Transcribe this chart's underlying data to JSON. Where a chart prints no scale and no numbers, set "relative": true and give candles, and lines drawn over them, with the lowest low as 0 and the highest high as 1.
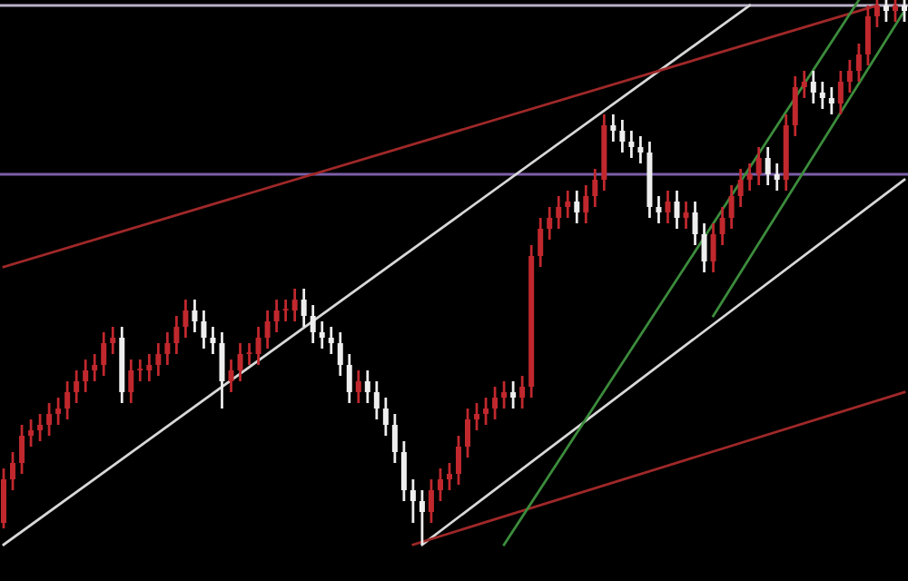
{
  "chart_data": {
    "type": "candlestick",
    "relative": true,
    "categories": [
      null,
      null,
      null,
      null,
      null,
      null,
      null,
      null,
      null,
      null,
      null,
      null,
      null,
      null,
      null,
      null,
      null,
      null,
      null,
      null,
      null,
      null,
      null,
      null,
      null,
      null,
      null,
      null,
      null,
      null,
      null,
      null,
      null,
      null,
      null,
      null,
      null,
      null,
      null,
      null,
      null,
      null,
      null,
      null,
      null,
      null,
      null,
      null,
      null,
      null,
      null,
      null,
      null,
      null,
      null,
      null,
      null,
      null,
      null,
      null,
      null,
      null,
      null,
      null,
      null,
      null,
      null,
      null,
      null,
      null,
      null,
      null,
      null,
      null,
      null,
      null,
      null,
      null,
      null,
      null,
      null,
      null,
      null,
      null,
      null,
      null,
      null,
      null,
      null,
      null,
      null,
      null,
      null,
      null,
      null,
      null,
      null,
      null,
      null,
      null
    ],
    "ohlc": [
      [
        0.04,
        0.14,
        0.03,
        0.12
      ],
      [
        0.12,
        0.17,
        0.1,
        0.15
      ],
      [
        0.15,
        0.22,
        0.13,
        0.2
      ],
      [
        0.2,
        0.23,
        0.18,
        0.21
      ],
      [
        0.21,
        0.24,
        0.19,
        0.22
      ],
      [
        0.22,
        0.26,
        0.2,
        0.24
      ],
      [
        0.24,
        0.27,
        0.22,
        0.25
      ],
      [
        0.25,
        0.3,
        0.23,
        0.28
      ],
      [
        0.28,
        0.32,
        0.26,
        0.3
      ],
      [
        0.3,
        0.34,
        0.28,
        0.32
      ],
      [
        0.32,
        0.35,
        0.3,
        0.33
      ],
      [
        0.33,
        0.39,
        0.31,
        0.37
      ],
      [
        0.37,
        0.4,
        0.35,
        0.38
      ],
      [
        0.38,
        0.4,
        0.26,
        0.28
      ],
      [
        0.28,
        0.34,
        0.26,
        0.32
      ],
      [
        0.32,
        0.34,
        0.3,
        0.32
      ],
      [
        0.32,
        0.35,
        0.3,
        0.33
      ],
      [
        0.33,
        0.37,
        0.31,
        0.35
      ],
      [
        0.35,
        0.39,
        0.33,
        0.37
      ],
      [
        0.37,
        0.42,
        0.35,
        0.4
      ],
      [
        0.4,
        0.45,
        0.38,
        0.43
      ],
      [
        0.43,
        0.45,
        0.39,
        0.41
      ],
      [
        0.41,
        0.43,
        0.36,
        0.38
      ],
      [
        0.38,
        0.4,
        0.35,
        0.37
      ],
      [
        0.37,
        0.39,
        0.25,
        0.3
      ],
      [
        0.3,
        0.34,
        0.28,
        0.32
      ],
      [
        0.32,
        0.37,
        0.3,
        0.35
      ],
      [
        0.35,
        0.37,
        0.33,
        0.35
      ],
      [
        0.35,
        0.4,
        0.33,
        0.38
      ],
      [
        0.38,
        0.43,
        0.36,
        0.41
      ],
      [
        0.41,
        0.45,
        0.39,
        0.43
      ],
      [
        0.43,
        0.45,
        0.41,
        0.43
      ],
      [
        0.43,
        0.47,
        0.41,
        0.45
      ],
      [
        0.45,
        0.47,
        0.4,
        0.42
      ],
      [
        0.42,
        0.44,
        0.37,
        0.39
      ],
      [
        0.39,
        0.41,
        0.36,
        0.38
      ],
      [
        0.38,
        0.4,
        0.35,
        0.37
      ],
      [
        0.37,
        0.39,
        0.31,
        0.33
      ],
      [
        0.33,
        0.35,
        0.26,
        0.28
      ],
      [
        0.28,
        0.32,
        0.26,
        0.3
      ],
      [
        0.3,
        0.32,
        0.26,
        0.28
      ],
      [
        0.28,
        0.3,
        0.23,
        0.25
      ],
      [
        0.25,
        0.27,
        0.2,
        0.22
      ],
      [
        0.22,
        0.24,
        0.15,
        0.17
      ],
      [
        0.17,
        0.19,
        0.08,
        0.1
      ],
      [
        0.1,
        0.12,
        0.04,
        0.08
      ],
      [
        0.08,
        0.1,
        0.0,
        0.06
      ],
      [
        0.06,
        0.12,
        0.04,
        0.1
      ],
      [
        0.1,
        0.14,
        0.08,
        0.12
      ],
      [
        0.12,
        0.15,
        0.1,
        0.13
      ],
      [
        0.13,
        0.2,
        0.11,
        0.18
      ],
      [
        0.18,
        0.25,
        0.16,
        0.23
      ],
      [
        0.23,
        0.26,
        0.21,
        0.24
      ],
      [
        0.24,
        0.27,
        0.22,
        0.25
      ],
      [
        0.25,
        0.29,
        0.23,
        0.27
      ],
      [
        0.27,
        0.3,
        0.25,
        0.28
      ],
      [
        0.28,
        0.3,
        0.25,
        0.27
      ],
      [
        0.27,
        0.31,
        0.25,
        0.29
      ],
      [
        0.29,
        0.55,
        0.27,
        0.53
      ],
      [
        0.53,
        0.6,
        0.51,
        0.58
      ],
      [
        0.58,
        0.62,
        0.56,
        0.6
      ],
      [
        0.6,
        0.64,
        0.58,
        0.62
      ],
      [
        0.62,
        0.65,
        0.6,
        0.63
      ],
      [
        0.63,
        0.65,
        0.59,
        0.61
      ],
      [
        0.61,
        0.66,
        0.59,
        0.64
      ],
      [
        0.64,
        0.69,
        0.62,
        0.67
      ],
      [
        0.67,
        0.79,
        0.65,
        0.77
      ],
      [
        0.77,
        0.79,
        0.74,
        0.76
      ],
      [
        0.76,
        0.78,
        0.72,
        0.74
      ],
      [
        0.74,
        0.76,
        0.71,
        0.73
      ],
      [
        0.73,
        0.75,
        0.7,
        0.72
      ],
      [
        0.72,
        0.74,
        0.6,
        0.62
      ],
      [
        0.62,
        0.64,
        0.59,
        0.61
      ],
      [
        0.61,
        0.65,
        0.59,
        0.63
      ],
      [
        0.63,
        0.65,
        0.58,
        0.6
      ],
      [
        0.6,
        0.63,
        0.58,
        0.61
      ],
      [
        0.61,
        0.63,
        0.55,
        0.57
      ],
      [
        0.57,
        0.59,
        0.5,
        0.52
      ],
      [
        0.52,
        0.59,
        0.5,
        0.57
      ],
      [
        0.57,
        0.62,
        0.55,
        0.6
      ],
      [
        0.6,
        0.66,
        0.58,
        0.64
      ],
      [
        0.64,
        0.69,
        0.62,
        0.67
      ],
      [
        0.67,
        0.7,
        0.65,
        0.68
      ],
      [
        0.68,
        0.73,
        0.66,
        0.71
      ],
      [
        0.71,
        0.73,
        0.66,
        0.68
      ],
      [
        0.68,
        0.7,
        0.65,
        0.67
      ],
      [
        0.67,
        0.79,
        0.65,
        0.77
      ],
      [
        0.77,
        0.86,
        0.75,
        0.84
      ],
      [
        0.84,
        0.87,
        0.82,
        0.85
      ],
      [
        0.85,
        0.87,
        0.81,
        0.83
      ],
      [
        0.83,
        0.85,
        0.8,
        0.82
      ],
      [
        0.82,
        0.84,
        0.79,
        0.81
      ],
      [
        0.81,
        0.87,
        0.79,
        0.85
      ],
      [
        0.85,
        0.89,
        0.83,
        0.87
      ],
      [
        0.87,
        0.92,
        0.85,
        0.9
      ],
      [
        0.9,
        0.99,
        0.88,
        0.97
      ],
      [
        0.97,
        1.0,
        0.95,
        0.99
      ],
      [
        0.99,
        1.0,
        0.96,
        0.98
      ],
      [
        0.98,
        1.0,
        0.96,
        0.99
      ],
      [
        0.99,
        1.0,
        0.96,
        0.98
      ]
    ],
    "colors": [
      "#c0282d",
      "#c0282d",
      "#c0282d",
      "#c0282d",
      "#c0282d",
      "#c0282d",
      "#c0282d",
      "#c0282d",
      "#c0282d",
      "#c0282d",
      "#c0282d",
      "#c0282d",
      "#c0282d",
      "#eeeeee",
      "#c0282d",
      "#c0282d",
      "#c0282d",
      "#c0282d",
      "#c0282d",
      "#c0282d",
      "#c0282d",
      "#eeeeee",
      "#eeeeee",
      "#eeeeee",
      "#eeeeee",
      "#c0282d",
      "#c0282d",
      "#c0282d",
      "#c0282d",
      "#c0282d",
      "#c0282d",
      "#c0282d",
      "#c0282d",
      "#eeeeee",
      "#eeeeee",
      "#eeeeee",
      "#eeeeee",
      "#eeeeee",
      "#eeeeee",
      "#c0282d",
      "#eeeeee",
      "#eeeeee",
      "#eeeeee",
      "#eeeeee",
      "#eeeeee",
      "#eeeeee",
      "#eeeeee",
      "#c0282d",
      "#c0282d",
      "#c0282d",
      "#c0282d",
      "#c0282d",
      "#c0282d",
      "#c0282d",
      "#c0282d",
      "#c0282d",
      "#eeeeee",
      "#c0282d",
      "#c0282d",
      "#c0282d",
      "#c0282d",
      "#c0282d",
      "#c0282d",
      "#eeeeee",
      "#c0282d",
      "#c0282d",
      "#c0282d",
      "#eeeeee",
      "#eeeeee",
      "#eeeeee",
      "#eeeeee",
      "#eeeeee",
      "#eeeeee",
      "#c0282d",
      "#eeeeee",
      "#c0282d",
      "#eeeeee",
      "#eeeeee",
      "#c0282d",
      "#c0282d",
      "#c0282d",
      "#c0282d",
      "#c0282d",
      "#c0282d",
      "#eeeeee",
      "#eeeeee",
      "#c0282d",
      "#c0282d",
      "#c0282d",
      "#eeeeee",
      "#eeeeee",
      "#eeeeee",
      "#c0282d",
      "#c0282d",
      "#c0282d",
      "#c0282d",
      "#c0282d",
      "#eeeeee",
      "#c0282d",
      "#eeeeee"
    ],
    "series": [
      {
        "type": "line",
        "color": "#d8d8d8",
        "values": [
          0.0,
          null,
          null,
          null,
          null,
          null,
          null,
          null,
          null,
          null,
          null,
          null,
          null,
          null,
          null,
          null,
          null,
          null,
          null,
          null,
          null,
          null,
          null,
          null,
          null,
          null,
          null,
          null,
          null,
          null,
          null,
          null,
          null,
          null,
          null,
          null,
          null,
          null,
          null,
          null,
          null,
          null,
          null,
          null,
          null,
          null,
          null,
          null,
          null,
          null,
          null,
          null,
          null,
          null,
          null,
          null,
          null,
          null,
          null,
          null,
          null,
          null,
          null,
          null,
          null,
          null,
          null,
          null,
          null,
          null,
          null,
          null,
          null,
          null,
          null,
          null,
          null,
          null,
          null,
          null,
          null,
          null,
          0.99,
          null,
          null,
          null,
          null,
          null,
          null,
          null,
          null,
          null,
          null,
          null,
          null,
          null,
          null,
          null,
          null,
          null
        ]
      },
      {
        "type": "line",
        "color": "#a02828",
        "values": [
          0.51,
          null,
          null,
          null,
          null,
          null,
          null,
          null,
          null,
          null,
          null,
          null,
          null,
          null,
          null,
          null,
          null,
          null,
          null,
          null,
          null,
          null,
          null,
          null,
          null,
          null,
          null,
          null,
          null,
          null,
          null,
          null,
          null,
          null,
          null,
          null,
          null,
          null,
          null,
          null,
          null,
          null,
          null,
          null,
          null,
          null,
          null,
          null,
          null,
          null,
          null,
          null,
          null,
          null,
          null,
          null,
          null,
          null,
          null,
          null,
          null,
          null,
          null,
          null,
          null,
          null,
          null,
          null,
          null,
          null,
          null,
          null,
          null,
          null,
          null,
          null,
          null,
          null,
          null,
          null,
          null,
          null,
          null,
          null,
          null,
          null,
          null,
          null,
          null,
          null,
          null,
          null,
          null,
          null,
          null,
          null,
          0.99,
          null,
          null,
          null
        ]
      },
      {
        "type": "line",
        "color": "#d8d8d8",
        "values": [
          null,
          null,
          null,
          null,
          null,
          null,
          null,
          null,
          null,
          null,
          null,
          null,
          null,
          null,
          null,
          null,
          null,
          null,
          null,
          null,
          null,
          null,
          null,
          null,
          null,
          null,
          null,
          null,
          null,
          null,
          null,
          null,
          null,
          null,
          null,
          null,
          null,
          null,
          null,
          null,
          null,
          null,
          null,
          null,
          null,
          null,
          0.0,
          null,
          null,
          null,
          null,
          null,
          null,
          null,
          null,
          null,
          null,
          null,
          null,
          null,
          null,
          null,
          null,
          null,
          null,
          null,
          null,
          null,
          null,
          null,
          null,
          null,
          null,
          null,
          null,
          null,
          null,
          null,
          null,
          null,
          null,
          null,
          null,
          null,
          null,
          null,
          null,
          null,
          null,
          null,
          null,
          null,
          null,
          null,
          null,
          null,
          null,
          null,
          null,
          0.67
        ]
      },
      {
        "type": "line",
        "color": "#a02828",
        "values": [
          null,
          null,
          null,
          null,
          null,
          null,
          null,
          null,
          null,
          null,
          null,
          null,
          null,
          null,
          null,
          null,
          null,
          null,
          null,
          null,
          null,
          null,
          null,
          null,
          null,
          null,
          null,
          null,
          null,
          null,
          null,
          null,
          null,
          null,
          null,
          null,
          null,
          null,
          null,
          null,
          null,
          null,
          null,
          null,
          null,
          0.0,
          null,
          null,
          null,
          null,
          null,
          null,
          null,
          null,
          null,
          null,
          null,
          null,
          null,
          null,
          null,
          null,
          null,
          null,
          null,
          null,
          null,
          null,
          null,
          null,
          null,
          null,
          null,
          null,
          null,
          null,
          null,
          null,
          null,
          null,
          null,
          null,
          null,
          null,
          null,
          null,
          null,
          null,
          null,
          null,
          null,
          null,
          null,
          null,
          null,
          null,
          null,
          null,
          null,
          0.28
        ]
      },
      {
        "type": "line",
        "color": "#3c8c3c",
        "values": [
          null,
          null,
          null,
          null,
          null,
          null,
          null,
          null,
          null,
          null,
          null,
          null,
          null,
          null,
          null,
          null,
          null,
          null,
          null,
          null,
          null,
          null,
          null,
          null,
          null,
          null,
          null,
          null,
          null,
          null,
          null,
          null,
          null,
          null,
          null,
          null,
          null,
          null,
          null,
          null,
          null,
          null,
          null,
          null,
          null,
          null,
          null,
          null,
          null,
          null,
          null,
          null,
          null,
          null,
          null,
          0.0,
          null,
          null,
          null,
          null,
          null,
          null,
          null,
          null,
          null,
          null,
          null,
          null,
          null,
          null,
          null,
          null,
          null,
          null,
          null,
          null,
          null,
          null,
          null,
          null,
          null,
          null,
          null,
          null,
          null,
          null,
          null,
          null,
          null,
          null,
          null,
          null,
          null,
          null,
          1.0,
          null,
          null,
          null,
          null,
          null
        ]
      },
      {
        "type": "line",
        "color": "#3c8c3c",
        "values": [
          null,
          null,
          null,
          null,
          null,
          null,
          null,
          null,
          null,
          null,
          null,
          null,
          null,
          null,
          null,
          null,
          null,
          null,
          null,
          null,
          null,
          null,
          null,
          null,
          null,
          null,
          null,
          null,
          null,
          null,
          null,
          null,
          null,
          null,
          null,
          null,
          null,
          null,
          null,
          null,
          null,
          null,
          null,
          null,
          null,
          null,
          null,
          null,
          null,
          null,
          null,
          null,
          null,
          null,
          null,
          null,
          null,
          null,
          null,
          null,
          null,
          null,
          null,
          null,
          null,
          null,
          null,
          null,
          null,
          null,
          null,
          null,
          null,
          null,
          null,
          null,
          null,
          null,
          0.42,
          null,
          null,
          null,
          null,
          null,
          null,
          null,
          null,
          null,
          null,
          null,
          null,
          null,
          null,
          null,
          null,
          null,
          null,
          null,
          null,
          0.98
        ]
      }
    ],
    "ref_lines": [
      {
        "axis": "y",
        "value": 0.68,
        "color": "#7b5ea7"
      },
      {
        "axis": "y",
        "value": 0.99,
        "color": "#b8b0c8"
      }
    ]
  }
}
